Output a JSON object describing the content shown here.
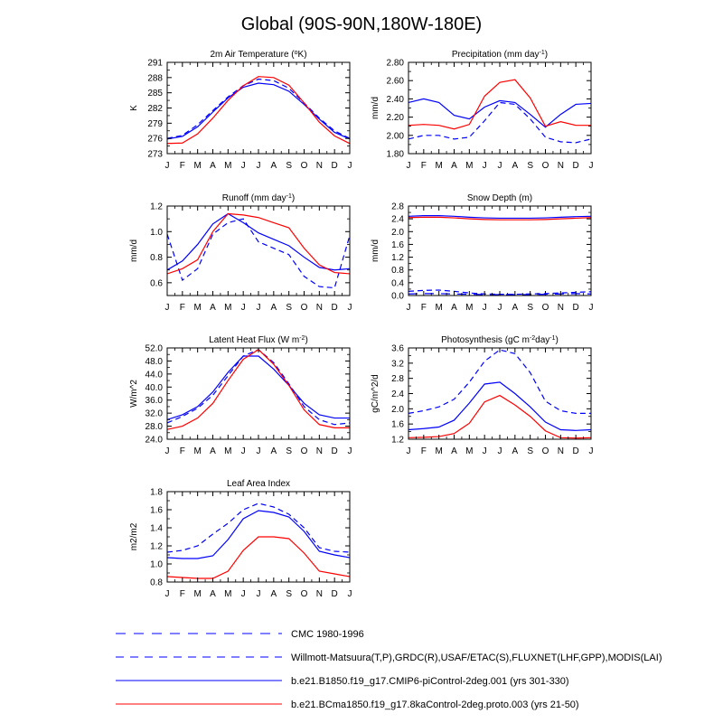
{
  "page_title": "Global (90S-90N,180W-180E)",
  "colors": {
    "model_blue": "#0000ff",
    "model_red": "#ff0000",
    "axis": "#000000"
  },
  "legend": [
    {
      "label": "CMC 1980-1996",
      "color": "#0000ff",
      "dash": "long"
    },
    {
      "label": "Willmott-Matsuura(T,P),GRDC(R),USAF/ETAC(S),FLUXNET(LHF,GPP),MODIS(LAI)",
      "color": "#0000ff",
      "dash": "medium"
    },
    {
      "label": "b.e21.B1850.f19_g17.CMIP6-piControl-2deg.001 (yrs 301-330)",
      "color": "#0000ff",
      "dash": "solid"
    },
    {
      "label": "b.e21.BCma1850.f19_g17.8kaControl-2deg.proto.003 (yrs 21-50)",
      "color": "#ff0000",
      "dash": "solid"
    }
  ],
  "chart_data": [
    {
      "type": "line",
      "title": "2m Air Temperature (°K)",
      "ylabel": "K",
      "categories": [
        "J",
        "F",
        "M",
        "A",
        "M",
        "J",
        "J",
        "A",
        "S",
        "O",
        "N",
        "D",
        "J"
      ],
      "ylim": [
        273,
        291
      ],
      "yticks": [
        273,
        276,
        279,
        282,
        285,
        288,
        291
      ],
      "series": [
        {
          "name": "Willmott-Matsuura(T,P),GRDC(R),USAF/ETAC(S),FLUXNET(LHF,GPP),MODIS(LAI)",
          "color": "#0000ff",
          "dash": "medium",
          "values": [
            276.0,
            276.6,
            278.7,
            281.5,
            284.2,
            286.4,
            287.7,
            287.4,
            285.9,
            283.0,
            280.0,
            277.5,
            276.0
          ]
        },
        {
          "name": "b.e21.B1850.f19_g17.CMIP6-piControl-2deg.001 (yrs 301-330)",
          "color": "#0000ff",
          "dash": "solid",
          "values": [
            275.9,
            276.4,
            278.3,
            281.2,
            284.0,
            286.1,
            286.9,
            286.6,
            285.3,
            282.7,
            279.8,
            277.2,
            275.9
          ]
        },
        {
          "name": "b.e21.BCma1850.f19_g17.8kaControl-2deg.proto.003 (yrs 21-50)",
          "color": "#ff0000",
          "dash": "solid",
          "values": [
            275.0,
            275.1,
            276.9,
            280.0,
            283.5,
            286.4,
            288.2,
            288.0,
            286.5,
            283.0,
            279.2,
            276.5,
            275.0
          ]
        }
      ]
    },
    {
      "type": "line",
      "title": "Precipitation (mm day-1)",
      "ylabel": "mm/d",
      "categories": [
        "J",
        "F",
        "M",
        "A",
        "M",
        "J",
        "J",
        "A",
        "S",
        "O",
        "N",
        "D",
        "J"
      ],
      "ylim": [
        1.8,
        2.8
      ],
      "yticks": [
        1.8,
        2.0,
        2.2,
        2.4,
        2.6,
        2.8
      ],
      "ytick_labels": [
        "1.80",
        "2.00",
        "2.20",
        "2.40",
        "2.60",
        "2.80"
      ],
      "series": [
        {
          "name": "Willmott-Matsuura(T,P),GRDC(R),USAF/ETAC(S),FLUXNET(LHF,GPP),MODIS(LAI)",
          "color": "#0000ff",
          "dash": "medium",
          "values": [
            1.96,
            2.0,
            2.0,
            1.96,
            1.98,
            2.16,
            2.36,
            2.34,
            2.18,
            1.98,
            1.93,
            1.92,
            1.96
          ]
        },
        {
          "name": "b.e21.B1850.f19_g17.CMIP6-piControl-2deg.001 (yrs 301-330)",
          "color": "#0000ff",
          "dash": "solid",
          "values": [
            2.36,
            2.4,
            2.36,
            2.22,
            2.18,
            2.31,
            2.38,
            2.36,
            2.23,
            2.09,
            2.23,
            2.34,
            2.35
          ]
        },
        {
          "name": "b.e21.BCma1850.f19_g17.8kaControl-2deg.proto.003 (yrs 21-50)",
          "color": "#ff0000",
          "dash": "solid",
          "values": [
            2.11,
            2.12,
            2.11,
            2.07,
            2.12,
            2.43,
            2.58,
            2.61,
            2.41,
            2.1,
            2.15,
            2.11,
            2.11
          ]
        }
      ]
    },
    {
      "type": "line",
      "title": "Runoff (mm day-1)",
      "ylabel": "mm/d",
      "categories": [
        "J",
        "F",
        "M",
        "A",
        "M",
        "J",
        "J",
        "A",
        "S",
        "O",
        "N",
        "D",
        "J"
      ],
      "ylim": [
        0.5,
        1.2
      ],
      "yticks": [
        0.6,
        0.8,
        1.0,
        1.2
      ],
      "ytick_labels": [
        "0.6",
        "0.8",
        "1.0",
        "1.2"
      ],
      "series": [
        {
          "name": "Willmott-Matsuura(T,P),GRDC(R),USAF/ETAC(S),FLUXNET(LHF,GPP),MODIS(LAI)",
          "color": "#0000ff",
          "dash": "medium",
          "values": [
            0.98,
            0.62,
            0.71,
            0.98,
            1.07,
            1.1,
            0.92,
            0.87,
            0.82,
            0.65,
            0.57,
            0.56,
            0.97
          ]
        },
        {
          "name": "b.e21.B1850.f19_g17.CMIP6-piControl-2deg.001 (yrs 301-330)",
          "color": "#0000ff",
          "dash": "solid",
          "values": [
            0.7,
            0.77,
            0.9,
            1.06,
            1.14,
            1.07,
            0.99,
            0.94,
            0.89,
            0.8,
            0.72,
            0.7,
            0.71
          ]
        },
        {
          "name": "b.e21.BCma1850.f19_g17.8kaControl-2deg.proto.003 (yrs 21-50)",
          "color": "#ff0000",
          "dash": "solid",
          "values": [
            0.67,
            0.71,
            0.78,
            1.0,
            1.14,
            1.13,
            1.11,
            1.07,
            1.03,
            0.87,
            0.74,
            0.68,
            0.67
          ]
        }
      ]
    },
    {
      "type": "line",
      "title": "Snow Depth (m)",
      "ylabel": "mm/d",
      "categories": [
        "J",
        "F",
        "M",
        "A",
        "M",
        "J",
        "J",
        "A",
        "S",
        "O",
        "N",
        "D",
        "J"
      ],
      "ylim": [
        0.0,
        2.8
      ],
      "yticks": [
        0.0,
        0.4,
        0.8,
        1.2,
        1.6,
        2.0,
        2.4,
        2.8
      ],
      "ytick_labels": [
        "0.0",
        "0.4",
        "0.8",
        "1.2",
        "1.6",
        "2.0",
        "2.4",
        "2.8"
      ],
      "series": [
        {
          "name": "CMC 1980-1996",
          "color": "#0000ff",
          "dash": "long",
          "values": [
            0.05,
            0.06,
            0.06,
            0.05,
            0.04,
            0.03,
            0.03,
            0.03,
            0.03,
            0.04,
            0.05,
            0.06,
            0.05
          ]
        },
        {
          "name": "Willmott-Matsuura(T,P),GRDC(R),USAF/ETAC(S),FLUXNET(LHF,GPP),MODIS(LAI)",
          "color": "#0000ff",
          "dash": "medium",
          "values": [
            0.13,
            0.16,
            0.17,
            0.13,
            0.08,
            0.05,
            0.04,
            0.04,
            0.05,
            0.06,
            0.08,
            0.1,
            0.12
          ]
        },
        {
          "name": "b.e21.B1850.f19_g17.CMIP6-piControl-2deg.001 (yrs 301-330)",
          "color": "#0000ff",
          "dash": "solid",
          "values": [
            2.48,
            2.5,
            2.5,
            2.48,
            2.45,
            2.43,
            2.42,
            2.42,
            2.42,
            2.43,
            2.45,
            2.47,
            2.48
          ]
        },
        {
          "name": "b.e21.BCma1850.f19_g17.8kaControl-2deg.proto.003 (yrs 21-50)",
          "color": "#ff0000",
          "dash": "solid",
          "values": [
            2.44,
            2.45,
            2.45,
            2.43,
            2.4,
            2.38,
            2.37,
            2.37,
            2.37,
            2.38,
            2.4,
            2.42,
            2.44
          ]
        }
      ]
    },
    {
      "type": "line",
      "title": "Latent Heat Flux (W m-2)",
      "ylabel": "W/m^2",
      "categories": [
        "J",
        "F",
        "M",
        "A",
        "M",
        "J",
        "J",
        "A",
        "S",
        "O",
        "N",
        "D",
        "J"
      ],
      "ylim": [
        24.0,
        52.0
      ],
      "yticks": [
        24,
        28,
        32,
        36,
        40,
        44,
        48,
        52
      ],
      "ytick_labels": [
        "24.0",
        "28.0",
        "32.0",
        "36.0",
        "40.0",
        "44.0",
        "48.0",
        "52.0"
      ],
      "series": [
        {
          "name": "Willmott-Matsuura(T,P),GRDC(R),USAF/ETAC(S),FLUXNET(LHF,GPP),MODIS(LAI)",
          "color": "#0000ff",
          "dash": "medium",
          "values": [
            29.0,
            31.0,
            33.5,
            37.5,
            43.5,
            49.5,
            51.5,
            47.5,
            41.0,
            34.0,
            30.0,
            28.5,
            29.0
          ]
        },
        {
          "name": "b.e21.B1850.f19_g17.CMIP6-piControl-2deg.001 (yrs 301-330)",
          "color": "#0000ff",
          "dash": "solid",
          "values": [
            30.0,
            31.5,
            34.0,
            38.5,
            44.5,
            49.5,
            49.5,
            45.5,
            40.5,
            35.0,
            31.5,
            30.5,
            30.5
          ]
        },
        {
          "name": "b.e21.BCma1850.f19_g17.8kaControl-2deg.proto.003 (yrs 21-50)",
          "color": "#ff0000",
          "dash": "solid",
          "values": [
            27.0,
            28.0,
            30.5,
            35.0,
            42.0,
            48.5,
            51.5,
            47.0,
            40.5,
            33.0,
            28.5,
            27.5,
            27.5
          ]
        }
      ]
    },
    {
      "type": "line",
      "title": "Photosynthesis (gC m-2day-1)",
      "ylabel": "gC/m^2/d",
      "categories": [
        "J",
        "F",
        "M",
        "A",
        "M",
        "J",
        "J",
        "A",
        "S",
        "O",
        "N",
        "D",
        "J"
      ],
      "ylim": [
        1.2,
        3.6
      ],
      "yticks": [
        1.2,
        1.6,
        2.0,
        2.4,
        2.8,
        3.2,
        3.6
      ],
      "ytick_labels": [
        "1.2",
        "1.6",
        "2.0",
        "2.4",
        "2.8",
        "3.2",
        "3.6"
      ],
      "series": [
        {
          "name": "Willmott-Matsuura(T,P),GRDC(R),USAF/ETAC(S),FLUXNET(LHF,GPP),MODIS(LAI)",
          "color": "#0000ff",
          "dash": "medium",
          "values": [
            1.88,
            1.95,
            2.05,
            2.25,
            2.7,
            3.25,
            3.55,
            3.45,
            2.95,
            2.2,
            1.95,
            1.88,
            1.88
          ]
        },
        {
          "name": "b.e21.B1850.f19_g17.CMIP6-piControl-2deg.001 (yrs 301-330)",
          "color": "#0000ff",
          "dash": "solid",
          "values": [
            1.45,
            1.48,
            1.52,
            1.7,
            2.15,
            2.65,
            2.7,
            2.4,
            2.05,
            1.65,
            1.45,
            1.43,
            1.45
          ]
        },
        {
          "name": "b.e21.BCma1850.f19_g17.8kaControl-2deg.proto.003 (yrs 21-50)",
          "color": "#ff0000",
          "dash": "solid",
          "values": [
            1.24,
            1.25,
            1.27,
            1.35,
            1.62,
            2.18,
            2.35,
            2.1,
            1.8,
            1.42,
            1.24,
            1.23,
            1.24
          ]
        }
      ]
    },
    {
      "type": "line",
      "title": "Leaf Area Index",
      "ylabel": "m2/m2",
      "categories": [
        "J",
        "F",
        "M",
        "A",
        "M",
        "J",
        "J",
        "A",
        "S",
        "O",
        "N",
        "D",
        "J"
      ],
      "ylim": [
        0.8,
        1.8
      ],
      "yticks": [
        0.8,
        1.0,
        1.2,
        1.4,
        1.6,
        1.8
      ],
      "ytick_labels": [
        "0.8",
        "1.0",
        "1.2",
        "1.4",
        "1.6",
        "1.8"
      ],
      "series": [
        {
          "name": "Willmott-Matsuura(T,P),GRDC(R),USAF/ETAC(S),FLUXNET(LHF,GPP),MODIS(LAI)",
          "color": "#0000ff",
          "dash": "medium",
          "values": [
            1.13,
            1.15,
            1.2,
            1.33,
            1.45,
            1.6,
            1.67,
            1.63,
            1.55,
            1.4,
            1.18,
            1.14,
            1.13
          ]
        },
        {
          "name": "b.e21.B1850.f19_g17.CMIP6-piControl-2deg.001 (yrs 301-330)",
          "color": "#0000ff",
          "dash": "solid",
          "values": [
            1.07,
            1.06,
            1.06,
            1.09,
            1.27,
            1.5,
            1.59,
            1.57,
            1.52,
            1.36,
            1.14,
            1.1,
            1.07
          ]
        },
        {
          "name": "b.e21.BCma1850.f19_g17.8kaControl-2deg.proto.003 (yrs 21-50)",
          "color": "#ff0000",
          "dash": "solid",
          "values": [
            0.86,
            0.85,
            0.84,
            0.84,
            0.92,
            1.15,
            1.3,
            1.3,
            1.28,
            1.12,
            0.92,
            0.89,
            0.86
          ]
        }
      ]
    }
  ]
}
